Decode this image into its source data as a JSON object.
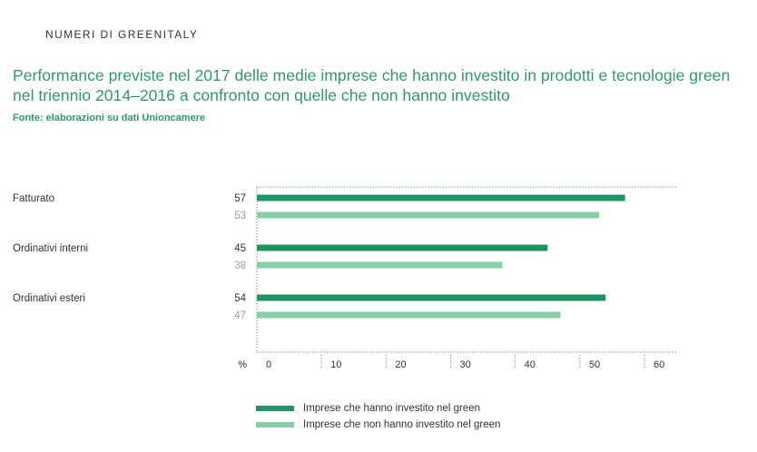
{
  "section_label": "NUMERI DI GREENITALY",
  "title": "Performance previste nel 2017 delle medie imprese che hanno investito in prodotti e tecnologie green nel triennio 2014–2016 a confronto con quelle che non hanno investito",
  "source": "Fonte: elaborazioni su dati Unioncamere",
  "colors": {
    "dark": "#1e9463",
    "light": "#86cfa6",
    "title": "#2f9a67"
  },
  "chart_data": {
    "type": "bar",
    "orientation": "horizontal",
    "categories": [
      "Fatturato",
      "Ordinativi interni",
      "Ordinativi esteri"
    ],
    "series": [
      {
        "name": "Imprese che hanno investito nel green",
        "values": [
          57,
          45,
          54
        ]
      },
      {
        "name": "Imprese che non hanno investito nel green",
        "values": [
          53,
          38,
          47
        ]
      }
    ],
    "xlabel": "%",
    "xlim": [
      0,
      60
    ],
    "xticks": [
      0,
      10,
      20,
      30,
      40,
      50,
      60
    ],
    "legend": "bottom"
  }
}
